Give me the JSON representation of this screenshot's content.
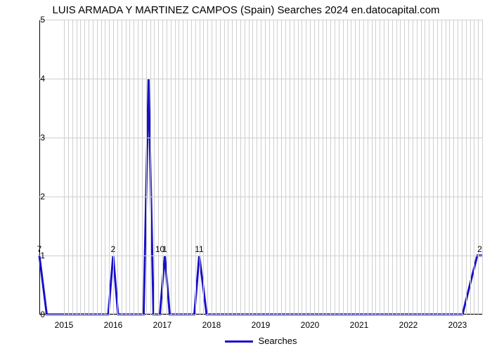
{
  "title": "LUIS ARMADA Y MARTINEZ CAMPOS (Spain) Searches 2024 en.datocapital.com",
  "chart": {
    "type": "line",
    "background_color": "#ffffff",
    "grid_color": "#cfcfcf",
    "axis_color": "#000000",
    "series_color": "#1910c9",
    "series_width": 3,
    "x_range": [
      2014.5,
      2023.5
    ],
    "y_range": [
      0,
      5
    ],
    "y_ticks": [
      0,
      1,
      2,
      3,
      4,
      5
    ],
    "x_ticks": [
      2015,
      2016,
      2017,
      2018,
      2019,
      2020,
      2021,
      2022,
      2023
    ],
    "minor_x_per_year": 12,
    "points": [
      {
        "x": 2014.5,
        "y": 1.0
      },
      {
        "x": 2014.65,
        "y": 0.0
      },
      {
        "x": 2015.9,
        "y": 0.0
      },
      {
        "x": 2016.0,
        "y": 1.0
      },
      {
        "x": 2016.1,
        "y": 0.0
      },
      {
        "x": 2016.62,
        "y": 0.0
      },
      {
        "x": 2016.72,
        "y": 4.0
      },
      {
        "x": 2016.82,
        "y": 0.0
      },
      {
        "x": 2016.95,
        "y": 0.0
      },
      {
        "x": 2017.05,
        "y": 1.0
      },
      {
        "x": 2017.15,
        "y": 0.0
      },
      {
        "x": 2017.65,
        "y": 0.0
      },
      {
        "x": 2017.75,
        "y": 1.0
      },
      {
        "x": 2017.9,
        "y": 0.0
      },
      {
        "x": 2023.1,
        "y": 0.0
      },
      {
        "x": 2023.4,
        "y": 1.0
      },
      {
        "x": 2023.5,
        "y": 1.0
      }
    ],
    "data_labels": [
      {
        "x": 2014.5,
        "y": 1.0,
        "text": "7"
      },
      {
        "x": 2016.0,
        "y": 1.0,
        "text": "2"
      },
      {
        "x": 2016.95,
        "y": 1.0,
        "text": "10"
      },
      {
        "x": 2017.05,
        "y": 1.0,
        "text": "1"
      },
      {
        "x": 2017.75,
        "y": 1.0,
        "text": "11"
      },
      {
        "x": 2023.45,
        "y": 1.0,
        "text": "2"
      }
    ]
  },
  "legend_label": "Searches"
}
